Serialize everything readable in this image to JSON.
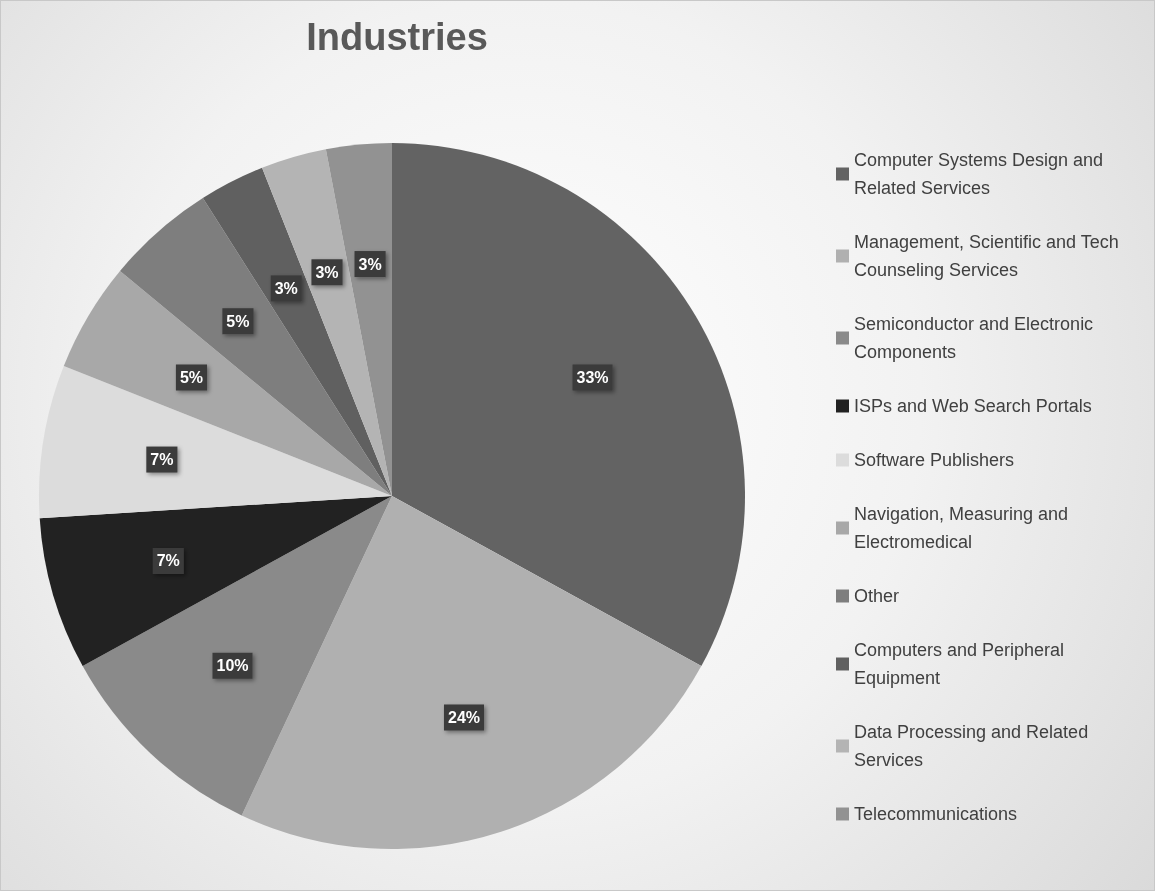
{
  "chart_data": {
    "type": "pie",
    "title": "Industries",
    "categories": [
      "Computer Systems Design and Related Services",
      "Management, Scientific and Tech Counseling Services",
      "Semiconductor and Electronic Components",
      "ISPs and Web Search Portals",
      "Software Publishers",
      "Navigation, Measuring and Electromedical",
      "Other",
      "Computers and Peripheral Equipment",
      "Data Processing and Related Services",
      "Telecommunications"
    ],
    "values": [
      33,
      24,
      10,
      7,
      7,
      5,
      5,
      3,
      3,
      3
    ],
    "value_labels": [
      "33%",
      "24%",
      "10%",
      "7%",
      "7%",
      "5%",
      "5%",
      "3%",
      "3%",
      "3%"
    ],
    "colors": [
      "#636363",
      "#b0b0b0",
      "#8a8a8a",
      "#222222",
      "#dcdcdc",
      "#a8a8a8",
      "#7e7e7e",
      "#606060",
      "#b4b4b4",
      "#929292"
    ],
    "legend": "right"
  }
}
